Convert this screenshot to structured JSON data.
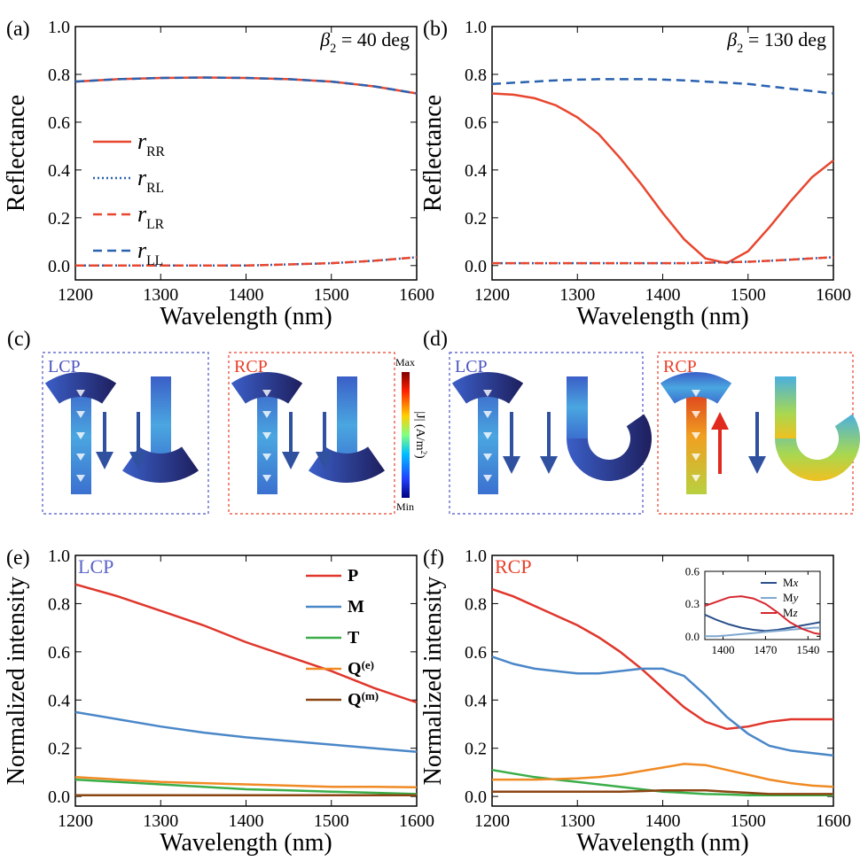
{
  "chart_data": [
    {
      "type": "line",
      "panel": "(a)",
      "annotation": "β2 = 40 deg",
      "xlabel": "Wavelength (nm)",
      "ylabel": "Reflectance",
      "x": [
        1200,
        1250,
        1300,
        1350,
        1400,
        1450,
        1500,
        1550,
        1600
      ],
      "xlim": [
        1200,
        1600
      ],
      "xticks": [
        1200,
        1300,
        1400,
        1500,
        1600
      ],
      "ylim": [
        -0.06,
        1.0
      ],
      "yticks": [
        {
          "value": 0,
          "label": "0.0"
        },
        0.2,
        0.4,
        0.6,
        0.8,
        {
          "value": 1,
          "label": "1.0"
        }
      ],
      "legend": "center left",
      "series": [
        {
          "name": "rRR",
          "color": "#e8472f",
          "style": "solid",
          "values": [
            0.77,
            0.78,
            0.785,
            0.787,
            0.785,
            0.78,
            0.77,
            0.75,
            0.72
          ]
        },
        {
          "name": "rRL",
          "color": "#2a62b0",
          "style": "dotted",
          "values": [
            0.0,
            0.0,
            0.0,
            0.0,
            0.0,
            0.005,
            0.01,
            0.02,
            0.035
          ]
        },
        {
          "name": "rLR",
          "color": "#e8472f",
          "style": "dashed",
          "values": [
            0.0,
            0.0,
            0.0,
            0.0,
            0.0,
            0.005,
            0.01,
            0.02,
            0.035
          ]
        },
        {
          "name": "rLL",
          "color": "#2a62b0",
          "style": "dashed",
          "values": [
            0.77,
            0.78,
            0.785,
            0.787,
            0.785,
            0.78,
            0.77,
            0.75,
            0.72
          ]
        }
      ]
    },
    {
      "type": "line",
      "panel": "(b)",
      "annotation": "β2 = 130 deg",
      "xlabel": "Wavelength (nm)",
      "ylabel": "Reflectance",
      "x": [
        1200,
        1225,
        1250,
        1275,
        1300,
        1325,
        1350,
        1375,
        1400,
        1425,
        1450,
        1475,
        1500,
        1525,
        1550,
        1575,
        1600
      ],
      "xlim": [
        1200,
        1600
      ],
      "xticks": [
        1200,
        1300,
        1400,
        1500,
        1600
      ],
      "ylim": [
        -0.06,
        1.0
      ],
      "yticks": [
        {
          "value": 0,
          "label": "0.0"
        },
        0.2,
        0.4,
        0.6,
        0.8,
        {
          "value": 1,
          "label": "1.0"
        }
      ],
      "series": [
        {
          "color": "#e8472f",
          "style": "solid",
          "values": [
            0.72,
            0.715,
            0.7,
            0.67,
            0.62,
            0.55,
            0.45,
            0.34,
            0.22,
            0.11,
            0.03,
            0.01,
            0.06,
            0.16,
            0.27,
            0.37,
            0.44
          ]
        },
        {
          "color": "#2a62b0",
          "style": "dotted",
          "values": [
            0.01,
            0.01,
            0.01,
            0.01,
            0.01,
            0.01,
            0.01,
            0.01,
            0.01,
            0.01,
            0.012,
            0.014,
            0.016,
            0.02,
            0.025,
            0.03,
            0.035
          ]
        },
        {
          "color": "#e8472f",
          "style": "dashed",
          "values": [
            0.01,
            0.01,
            0.01,
            0.01,
            0.01,
            0.01,
            0.01,
            0.01,
            0.01,
            0.01,
            0.012,
            0.014,
            0.016,
            0.02,
            0.025,
            0.03,
            0.035
          ]
        },
        {
          "color": "#2a62b0",
          "style": "dashed",
          "values": [
            0.76,
            0.765,
            0.77,
            0.775,
            0.778,
            0.78,
            0.78,
            0.78,
            0.778,
            0.775,
            0.77,
            0.765,
            0.76,
            0.75,
            0.74,
            0.73,
            0.72
          ]
        }
      ]
    },
    {
      "type": "line",
      "panel": "(e)",
      "annotation": "LCP",
      "annotation_color": "#5a63c8",
      "xlabel": "Wavelength (nm)",
      "ylabel": "Normalized intensity",
      "x": [
        1200,
        1250,
        1300,
        1350,
        1400,
        1450,
        1500,
        1550,
        1600
      ],
      "xlim": [
        1200,
        1600
      ],
      "xticks": [
        1200,
        1300,
        1400,
        1500,
        1600
      ],
      "ylim": [
        -0.04,
        1.0
      ],
      "yticks": [
        {
          "value": 0,
          "label": "0.0"
        },
        0.2,
        0.4,
        0.6,
        0.8,
        {
          "value": 1,
          "label": "1.0"
        }
      ],
      "legend": "upper right",
      "series": [
        {
          "name": "P",
          "color": "#e0362c",
          "style": "solid",
          "values": [
            0.88,
            0.83,
            0.77,
            0.71,
            0.64,
            0.58,
            0.52,
            0.45,
            0.39
          ]
        },
        {
          "name": "M",
          "color": "#4a87c8",
          "style": "solid",
          "values": [
            0.35,
            0.32,
            0.29,
            0.265,
            0.245,
            0.23,
            0.215,
            0.2,
            0.185
          ]
        },
        {
          "name": "T",
          "color": "#3aae49",
          "style": "solid",
          "values": [
            0.07,
            0.06,
            0.05,
            0.04,
            0.03,
            0.025,
            0.02,
            0.015,
            0.01
          ]
        },
        {
          "name": "Q(e)",
          "color": "#f08a24",
          "style": "solid",
          "values": [
            0.08,
            0.07,
            0.06,
            0.055,
            0.05,
            0.045,
            0.04,
            0.04,
            0.038
          ]
        },
        {
          "name": "Q(m)",
          "color": "#8b4513",
          "style": "solid",
          "values": [
            0.005,
            0.005,
            0.005,
            0.005,
            0.005,
            0.005,
            0.005,
            0.005,
            0.005
          ]
        }
      ]
    },
    {
      "type": "line",
      "panel": "(f)",
      "annotation": "RCP",
      "annotation_color": "#e8402a",
      "xlabel": "Wavelength (nm)",
      "ylabel": "Normalized intensity",
      "x": [
        1200,
        1225,
        1250,
        1275,
        1300,
        1325,
        1350,
        1375,
        1400,
        1425,
        1450,
        1475,
        1500,
        1525,
        1550,
        1575,
        1600
      ],
      "xlim": [
        1200,
        1600
      ],
      "xticks": [
        1200,
        1300,
        1400,
        1500,
        1600
      ],
      "ylim": [
        -0.04,
        1.0
      ],
      "yticks": [
        {
          "value": 0,
          "label": "0.0"
        },
        0.2,
        0.4,
        0.6,
        0.8,
        {
          "value": 1,
          "label": "1.0"
        }
      ],
      "series": [
        {
          "color": "#e0362c",
          "style": "solid",
          "values": [
            0.86,
            0.83,
            0.79,
            0.75,
            0.71,
            0.66,
            0.6,
            0.53,
            0.45,
            0.37,
            0.31,
            0.28,
            0.29,
            0.31,
            0.32,
            0.32,
            0.32
          ]
        },
        {
          "color": "#4a87c8",
          "style": "solid",
          "values": [
            0.58,
            0.55,
            0.53,
            0.52,
            0.51,
            0.51,
            0.52,
            0.53,
            0.53,
            0.5,
            0.42,
            0.33,
            0.26,
            0.21,
            0.19,
            0.18,
            0.17
          ]
        },
        {
          "color": "#3aae49",
          "style": "solid",
          "values": [
            0.11,
            0.095,
            0.08,
            0.07,
            0.06,
            0.05,
            0.04,
            0.03,
            0.02,
            0.015,
            0.01,
            0.008,
            0.005,
            0.005,
            0.005,
            0.005,
            0.005
          ]
        },
        {
          "color": "#f08a24",
          "style": "solid",
          "values": [
            0.07,
            0.07,
            0.07,
            0.072,
            0.075,
            0.08,
            0.09,
            0.105,
            0.12,
            0.135,
            0.13,
            0.11,
            0.09,
            0.07,
            0.055,
            0.045,
            0.04
          ]
        },
        {
          "color": "#8b4513",
          "style": "solid",
          "values": [
            0.02,
            0.02,
            0.02,
            0.02,
            0.02,
            0.02,
            0.02,
            0.022,
            0.025,
            0.025,
            0.025,
            0.02,
            0.015,
            0.01,
            0.01,
            0.01,
            0.01
          ]
        }
      ]
    },
    {
      "type": "line",
      "x": [
        1370,
        1390,
        1410,
        1430,
        1450,
        1470,
        1490,
        1510,
        1530,
        1550,
        1560
      ],
      "xlim": [
        1370,
        1560
      ],
      "xticks": [
        1400,
        1470,
        1540
      ],
      "ylim": [
        -0.03,
        0.6
      ],
      "yticks": [
        {
          "value": 0,
          "label": "0.0"
        },
        0.3,
        0.6
      ],
      "legend": "upper right",
      "series": [
        {
          "name": "Mx",
          "color": "#2a4f8a",
          "style": "solid",
          "values": [
            0.2,
            0.15,
            0.11,
            0.08,
            0.06,
            0.05,
            0.06,
            0.08,
            0.1,
            0.12,
            0.13
          ]
        },
        {
          "name": "My",
          "color": "#7fa8cf",
          "style": "solid",
          "values": [
            0.0,
            0.0,
            0.01,
            0.02,
            0.03,
            0.04,
            0.05,
            0.06,
            0.07,
            0.08,
            0.08
          ]
        },
        {
          "name": "Mz",
          "color": "#d6262e",
          "style": "solid",
          "values": [
            0.28,
            0.32,
            0.36,
            0.37,
            0.35,
            0.3,
            0.22,
            0.13,
            0.07,
            0.03,
            0.02
          ]
        }
      ]
    }
  ],
  "field_maps": [
    {
      "label": "(c)",
      "boxes": [
        {
          "text": "LCP",
          "color": "#4a55c0"
        },
        {
          "text": "RCP",
          "color": "#e8402a"
        }
      ]
    },
    {
      "label": "(d)",
      "boxes": [
        {
          "text": "LCP",
          "color": "#4a55c0"
        },
        {
          "text": "RCP",
          "color": "#e8402a"
        }
      ]
    }
  ],
  "colorbar": {
    "max": "Max",
    "min": "Min",
    "label": "|J| (A/m2)"
  }
}
